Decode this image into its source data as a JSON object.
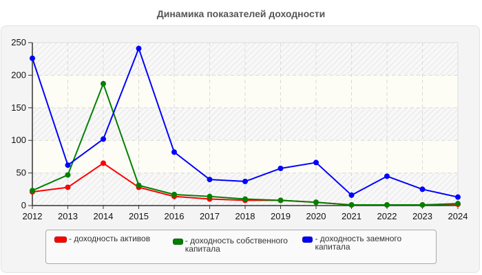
{
  "title": "Динамика показателей доходности",
  "chart_data": {
    "type": "line",
    "title": "Динамика показателей доходности",
    "xlabel": "",
    "ylabel": "",
    "x": [
      2012,
      2013,
      2014,
      2015,
      2016,
      2017,
      2018,
      2019,
      2020,
      2021,
      2022,
      2023,
      2024
    ],
    "ylim": [
      0,
      250
    ],
    "yticks": [
      0,
      50,
      100,
      150,
      200,
      250
    ],
    "grid": true,
    "legend_position": "bottom",
    "series": [
      {
        "name": "доходность активов",
        "color": "#ff0000",
        "values": [
          21,
          28,
          65,
          28,
          14,
          10,
          8,
          8,
          5,
          1,
          1,
          1,
          2
        ]
      },
      {
        "name": "доходность собственного капитала",
        "color": "#008000",
        "values": [
          23,
          47,
          187,
          31,
          17,
          14,
          10,
          8,
          5,
          1,
          1,
          1,
          3
        ]
      },
      {
        "name": "доходность заемного капитала",
        "color": "#0000ff",
        "values": [
          226,
          62,
          102,
          241,
          82,
          40,
          37,
          57,
          66,
          16,
          45,
          25,
          13
        ]
      }
    ]
  },
  "legend": {
    "items": [
      {
        "label": "- доходность активов",
        "color": "#ff0000"
      },
      {
        "label": "- доходность собственного капитала",
        "color": "#008000"
      },
      {
        "label": "- доходность заемного капитала",
        "color": "#0000ff"
      }
    ]
  }
}
